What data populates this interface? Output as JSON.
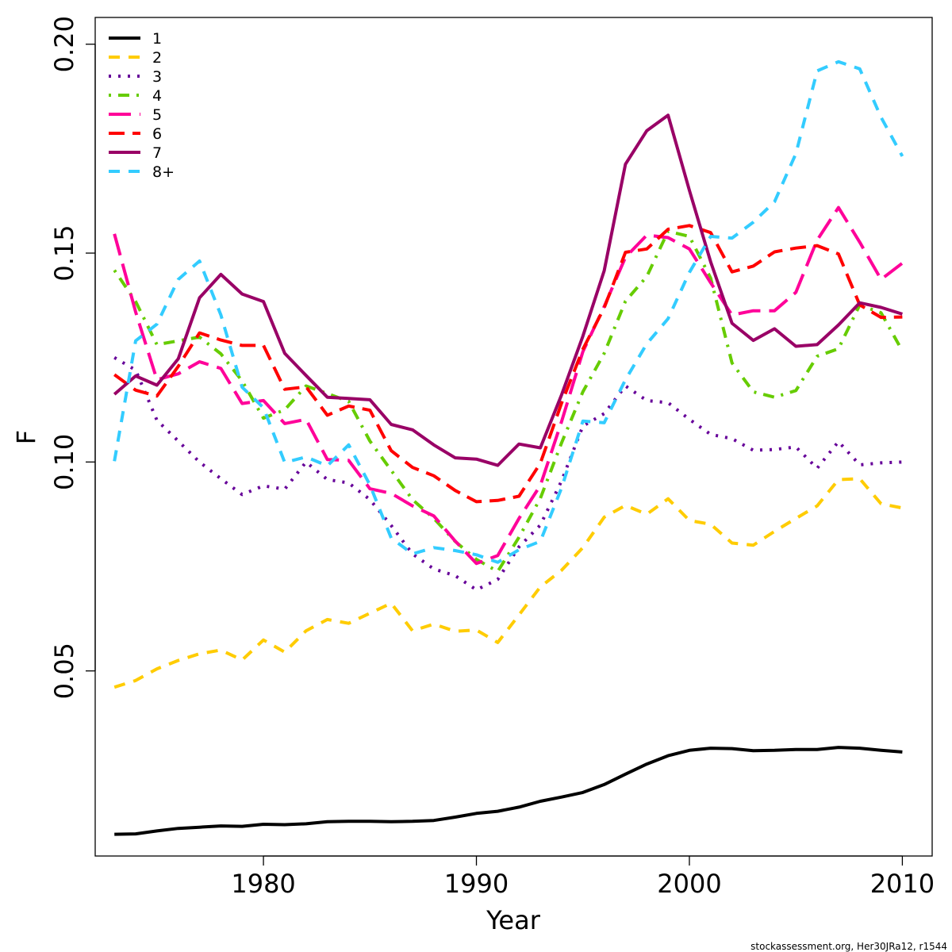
{
  "chart_data": {
    "type": "line",
    "title": "",
    "xlabel": "Year",
    "ylabel": "F",
    "xlim": [
      1972.1,
      2011.4
    ],
    "ylim": [
      0.0057,
      0.2064
    ],
    "x_ticks": [
      1980,
      1990,
      2000,
      2010
    ],
    "y_ticks": [
      0.05,
      0.1,
      0.15,
      0.2
    ],
    "x_tick_labels": [
      "1980",
      "1990",
      "2000",
      "2010"
    ],
    "y_tick_labels": [
      "0.05",
      "0.10",
      "0.15",
      "0.20"
    ],
    "grid": false,
    "legend_position": "top-left",
    "x": [
      1973,
      1974,
      1975,
      1976,
      1977,
      1978,
      1979,
      1980,
      1981,
      1982,
      1983,
      1984,
      1985,
      1986,
      1987,
      1988,
      1989,
      1990,
      1991,
      1992,
      1993,
      1994,
      1995,
      1996,
      1997,
      1998,
      1999,
      2000,
      2001,
      2002,
      2003,
      2004,
      2005,
      2006,
      2007,
      2008,
      2009,
      2010
    ],
    "series": [
      {
        "name": "1",
        "color": "#000000",
        "dash": "solid",
        "values": [
          0.0109,
          0.011,
          0.0117,
          0.0123,
          0.0126,
          0.0129,
          0.0128,
          0.0133,
          0.0132,
          0.0134,
          0.0139,
          0.014,
          0.014,
          0.0139,
          0.014,
          0.0142,
          0.015,
          0.0159,
          0.0164,
          0.0174,
          0.0188,
          0.0198,
          0.0209,
          0.0228,
          0.0253,
          0.0277,
          0.0297,
          0.031,
          0.0315,
          0.0314,
          0.0309,
          0.031,
          0.0312,
          0.0312,
          0.0317,
          0.0315,
          0.031,
          0.0306
        ]
      },
      {
        "name": "2",
        "color": "#ffcc00",
        "dash": "dashed",
        "values": [
          0.0461,
          0.0477,
          0.0505,
          0.0525,
          0.0541,
          0.055,
          0.0526,
          0.0574,
          0.0545,
          0.0596,
          0.0623,
          0.0614,
          0.0638,
          0.0662,
          0.0596,
          0.0612,
          0.0595,
          0.0598,
          0.0568,
          0.0634,
          0.0701,
          0.0741,
          0.0795,
          0.0868,
          0.0896,
          0.0875,
          0.0912,
          0.086,
          0.0851,
          0.0806,
          0.0801,
          0.0834,
          0.0865,
          0.0895,
          0.0958,
          0.096,
          0.09,
          0.089
        ]
      },
      {
        "name": "3",
        "color": "#660099",
        "dash": "dotted",
        "values": [
          0.125,
          0.122,
          0.11,
          0.105,
          0.1,
          0.096,
          0.0922,
          0.0943,
          0.0935,
          0.1,
          0.0958,
          0.095,
          0.091,
          0.0848,
          0.078,
          0.0744,
          0.0728,
          0.0694,
          0.0719,
          0.0797,
          0.0849,
          0.0955,
          0.1086,
          0.1116,
          0.1182,
          0.1147,
          0.1142,
          0.1102,
          0.1066,
          0.1056,
          0.1028,
          0.103,
          0.1036,
          0.0985,
          0.1049,
          0.0993,
          0.0998,
          0.1
        ]
      },
      {
        "name": "4",
        "color": "#66cc00",
        "dash": "dotdash",
        "values": [
          0.1459,
          0.1384,
          0.1281,
          0.129,
          0.1299,
          0.1259,
          0.1194,
          0.1105,
          0.1125,
          0.1182,
          0.1164,
          0.1145,
          0.105,
          0.098,
          0.091,
          0.0865,
          0.081,
          0.0767,
          0.0738,
          0.082,
          0.0913,
          0.1046,
          0.1168,
          0.126,
          0.1385,
          0.1444,
          0.1552,
          0.154,
          0.144,
          0.1237,
          0.1168,
          0.1155,
          0.1171,
          0.1253,
          0.1271,
          0.1376,
          0.1357,
          0.1266
        ]
      },
      {
        "name": "5",
        "color": "#ff0099",
        "dash": "longdash",
        "values": [
          0.1546,
          0.1359,
          0.1197,
          0.1211,
          0.124,
          0.1224,
          0.114,
          0.1147,
          0.1092,
          0.1102,
          0.1006,
          0.1004,
          0.0936,
          0.0925,
          0.0895,
          0.0871,
          0.0811,
          0.0757,
          0.0776,
          0.0865,
          0.0944,
          0.1097,
          0.1264,
          0.1372,
          0.149,
          0.1543,
          0.1537,
          0.151,
          0.1429,
          0.1352,
          0.1362,
          0.1362,
          0.1406,
          0.1531,
          0.1609,
          0.1526,
          0.1437,
          0.1476
        ]
      },
      {
        "name": "6",
        "color": "#ff0000",
        "dash": "dashed-long",
        "values": [
          0.1209,
          0.1172,
          0.1158,
          0.1229,
          0.1309,
          0.1292,
          0.1279,
          0.1279,
          0.1174,
          0.118,
          0.1112,
          0.1134,
          0.1124,
          0.1027,
          0.0987,
          0.0967,
          0.0932,
          0.0905,
          0.0908,
          0.0918,
          0.0997,
          0.1141,
          0.127,
          0.1369,
          0.1502,
          0.151,
          0.1557,
          0.1566,
          0.1549,
          0.1455,
          0.1469,
          0.1503,
          0.1512,
          0.1518,
          0.1498,
          0.1376,
          0.1346,
          0.1347
        ]
      },
      {
        "name": "7",
        "color": "#990066",
        "dash": "solid",
        "values": [
          0.1162,
          0.1206,
          0.1184,
          0.1247,
          0.1393,
          0.1449,
          0.1402,
          0.1384,
          0.126,
          0.1207,
          0.1155,
          0.1152,
          0.1149,
          0.109,
          0.1077,
          0.1041,
          0.101,
          0.1007,
          0.0992,
          0.1043,
          0.1034,
          0.1161,
          0.1301,
          0.1458,
          0.1713,
          0.1793,
          0.183,
          0.165,
          0.1479,
          0.1332,
          0.1291,
          0.1319,
          0.1277,
          0.1281,
          0.1328,
          0.1381,
          0.137,
          0.1354
        ]
      },
      {
        "name": "8+",
        "color": "#33ccff",
        "dash": "dashed",
        "values": [
          0.1002,
          0.129,
          0.133,
          0.1437,
          0.1481,
          0.1352,
          0.1179,
          0.113,
          0.0999,
          0.1012,
          0.0991,
          0.1041,
          0.0945,
          0.0818,
          0.078,
          0.0795,
          0.0788,
          0.0778,
          0.076,
          0.079,
          0.081,
          0.0938,
          0.1098,
          0.1094,
          0.1197,
          0.1283,
          0.1343,
          0.1454,
          0.154,
          0.1536,
          0.1574,
          0.1623,
          0.1738,
          0.1936,
          0.1958,
          0.1941,
          0.1825,
          0.1732
        ]
      }
    ],
    "footer_note": "stockassessment.org, Her30JRa12, r1544"
  }
}
